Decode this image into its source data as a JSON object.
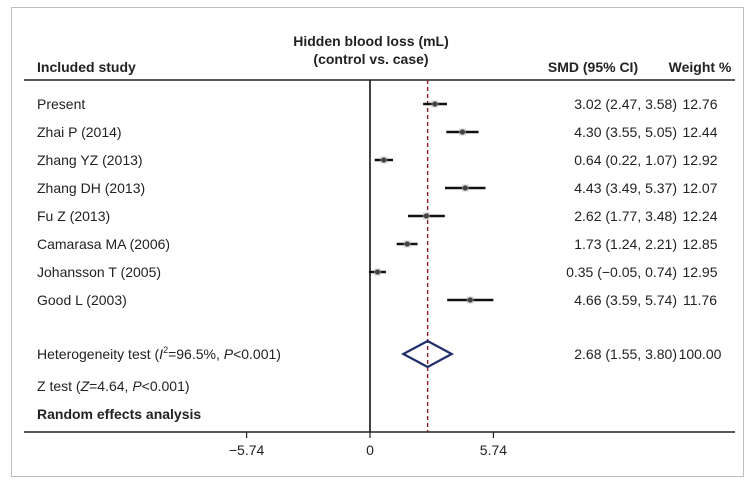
{
  "header": {
    "study_col": "Included study",
    "plot_title_line1": "Hidden blood loss (mL)",
    "plot_title_line2": "(control vs. case)",
    "smd_col": "SMD (95% CI)",
    "weight_col": "Weight %"
  },
  "chart_data": {
    "type": "forest",
    "title": "Hidden blood loss (mL)",
    "subtitle": "(control vs. case)",
    "x_ticks": [
      {
        "value": -5.74,
        "label": "−5.74"
      },
      {
        "value": 0,
        "label": "0"
      },
      {
        "value": 5.74,
        "label": "5.74"
      }
    ],
    "xlim": [
      -7.6,
      12.1
    ],
    "null_line": 0,
    "pooled_line": 2.68,
    "studies": [
      {
        "study": "Present",
        "smd": 3.02,
        "lower": 2.47,
        "upper": 3.58,
        "ci_label": "3.02 (2.47, 3.58)",
        "weight": "12.76"
      },
      {
        "study": "Zhai P (2014)",
        "smd": 4.3,
        "lower": 3.55,
        "upper": 5.05,
        "ci_label": "4.30 (3.55, 5.05)",
        "weight": "12.44"
      },
      {
        "study": "Zhang YZ (2013)",
        "smd": 0.64,
        "lower": 0.22,
        "upper": 1.07,
        "ci_label": "0.64 (0.22, 1.07)",
        "weight": "12.92"
      },
      {
        "study": "Zhang DH (2013)",
        "smd": 4.43,
        "lower": 3.49,
        "upper": 5.37,
        "ci_label": "4.43 (3.49, 5.37)",
        "weight": "12.07"
      },
      {
        "study": "Fu Z (2013)",
        "smd": 2.62,
        "lower": 1.77,
        "upper": 3.48,
        "ci_label": "2.62 (1.77, 3.48)",
        "weight": "12.24"
      },
      {
        "study": "Camarasa MA (2006)",
        "smd": 1.73,
        "lower": 1.24,
        "upper": 2.21,
        "ci_label": "1.73 (1.24, 2.21)",
        "weight": "12.85"
      },
      {
        "study": "Johansson T (2005)",
        "smd": 0.35,
        "lower": -0.05,
        "upper": 0.74,
        "ci_label": "0.35 (−0.05, 0.74)",
        "weight": "12.95"
      },
      {
        "study": "Good L (2003)",
        "smd": 4.66,
        "lower": 3.59,
        "upper": 5.74,
        "ci_label": "4.66 (3.59, 5.74)",
        "weight": "11.76"
      }
    ],
    "pooled": {
      "label_prefix": "Heterogeneity test (",
      "label_i": "I",
      "label_sup": "2",
      "label_rest": "=96.5%, ",
      "label_p": "P",
      "label_end": "<0.001)",
      "smd": 2.68,
      "lower": 1.55,
      "upper": 3.8,
      "ci_label": "2.68 (1.55, 3.80)",
      "weight": "100.00"
    },
    "z_test": {
      "prefix": "Z test (",
      "z": "Z",
      "mid": "=4.64, ",
      "p": "P",
      "end": "<0.001)"
    },
    "model_label": "Random effects analysis",
    "colors": {
      "ci_line": "#111111",
      "diamond": "#1f2d6b",
      "pooled_line": "#8b1a2b",
      "point": "#444444"
    }
  }
}
